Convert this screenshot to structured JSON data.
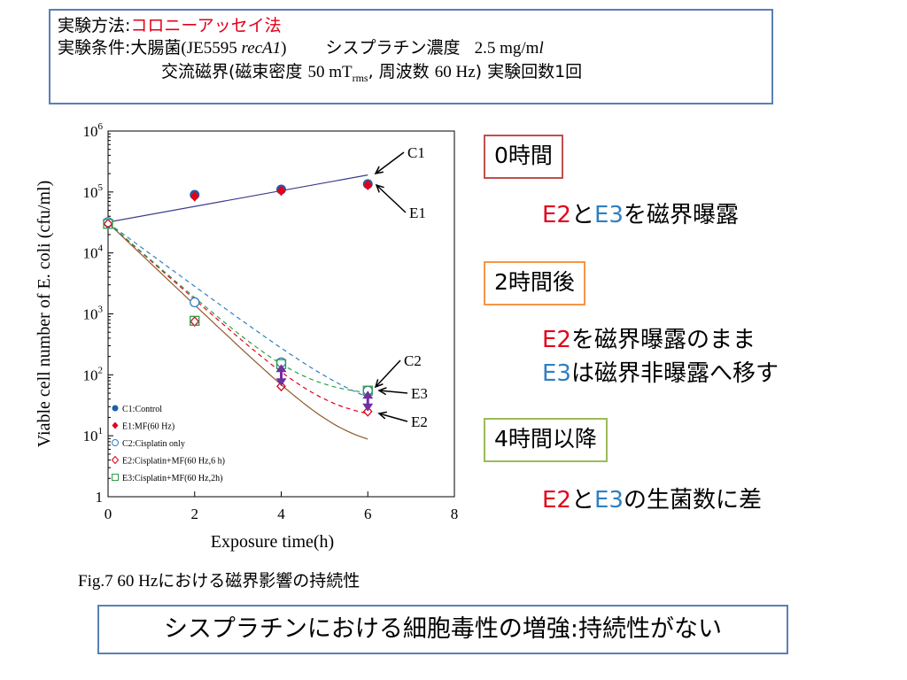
{
  "info": {
    "method_label": "実験方法:",
    "method_value": "コロニーアッセイ法",
    "condition_label": "実験条件:",
    "condition_1a": "大腸菌",
    "condition_1b": "(JE5595 ",
    "condition_1c": "recA1",
    "condition_1d": ")",
    "condition_1e": "シスプラチン濃度",
    "condition_1f": "2.5 mg/m",
    "condition_1g": "l",
    "condition_2a": "交流磁界(磁束密度 ",
    "condition_2b": "50 mT",
    "condition_2c": "rms",
    "condition_2d": ", 周波数 ",
    "condition_2e": "60 Hz",
    "condition_2f": ") 実験回数1回"
  },
  "stages": [
    {
      "label": "0時間",
      "color": "#c0504d"
    },
    {
      "label": "2時間後",
      "color": "#f79646"
    },
    {
      "label": "4時間以降",
      "color": "#9bbb59"
    }
  ],
  "notes": {
    "n1_e2": "E2",
    "n1_and": "と",
    "n1_e3": "E3",
    "n1_rest": "を磁界曝露",
    "n2_e2": "E2",
    "n2_rest": "を磁界曝露のまま",
    "n3_e3": "E3",
    "n3_rest": "は磁界非曝露へ移す",
    "n4_e2": "E2",
    "n4_and": "と",
    "n4_e3": "E3",
    "n4_rest": "の生菌数に差"
  },
  "caption": "Fig.7 60 Hzにおける磁界影響の持続性",
  "conclusion": "シスプラチンにおける細胞毒性の増強:持続性がない",
  "chart_data": {
    "type": "scatter",
    "xlabel": "Exposure time(h)",
    "ylabel": "Viable cell number of E. coli (cfu/ml)",
    "xlim": [
      0,
      8
    ],
    "ylim": [
      1,
      1000000
    ],
    "yscale": "log",
    "x_ticks": [
      "0",
      "2",
      "4",
      "6",
      "8"
    ],
    "y_ticks": [
      {
        "value": 1,
        "base": "1",
        "exp": ""
      },
      {
        "value": 10,
        "base": "10",
        "exp": "1"
      },
      {
        "value": 100,
        "base": "10",
        "exp": "2"
      },
      {
        "value": 1000,
        "base": "10",
        "exp": "3"
      },
      {
        "value": 10000,
        "base": "10",
        "exp": "4"
      },
      {
        "value": 100000,
        "base": "10",
        "exp": "5"
      },
      {
        "value": 1000000,
        "base": "10",
        "exp": "6"
      }
    ],
    "series": [
      {
        "name": "C1:Control",
        "marker": "circle-filled",
        "color": "#1f5fa8",
        "x": [
          0,
          2,
          4,
          6
        ],
        "y": [
          32000,
          90000,
          110000,
          135000
        ]
      },
      {
        "name": "E1:MF(60 Hz)",
        "marker": "diamond-filled",
        "color": "#e2001a",
        "x": [
          0,
          2,
          4,
          6
        ],
        "y": [
          30000,
          85000,
          105000,
          130000
        ]
      },
      {
        "name": "C2:Cisplatin only",
        "marker": "circle-open",
        "color": "#2f7fc2",
        "x": [
          0,
          2,
          4,
          6
        ],
        "y": [
          32000,
          1550,
          160,
          55
        ]
      },
      {
        "name": "E2:Cisplatin+MF(60 Hz,6 h)",
        "marker": "diamond-open",
        "color": "#e2001a",
        "x": [
          0,
          2,
          4,
          6
        ],
        "y": [
          30000,
          750,
          65,
          25
        ]
      },
      {
        "name": "E3:Cisplatin+MF(60 Hz,2h)",
        "marker": "square-open",
        "color": "#2e9d48",
        "x": [
          0,
          2,
          4,
          6
        ],
        "y": [
          30000,
          770,
          150,
          55
        ]
      }
    ],
    "annotations": [
      "C1",
      "E1",
      "C2",
      "E3",
      "E2"
    ]
  }
}
